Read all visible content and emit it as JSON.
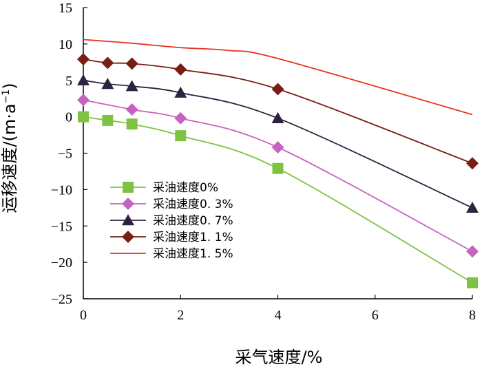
{
  "chart_data": {
    "type": "line",
    "title": "",
    "xlabel": "采气速度/%",
    "ylabel_main": "运移速度/(m·a",
    "ylabel_sup": "−1",
    "ylabel_close": ")",
    "xlim": [
      0,
      8
    ],
    "ylim": [
      -25,
      15
    ],
    "xticks": [
      0,
      2,
      4,
      6,
      8
    ],
    "yticks": [
      15,
      10,
      5,
      0,
      -5,
      -10,
      -15,
      -20,
      -25
    ],
    "ytick_labels": [
      "15",
      "10",
      "5",
      "0",
      "−5",
      "−10",
      "−15",
      "−20",
      "−25"
    ],
    "grid": false,
    "legend_position": "lower-left",
    "series": [
      {
        "name": "采油速度0%",
        "color": "#7fc241",
        "marker": "square",
        "x": [
          0,
          0.5,
          1,
          2,
          4,
          8
        ],
        "values": [
          0.0,
          -0.5,
          -1.0,
          -2.6,
          -7.1,
          -22.8
        ]
      },
      {
        "name": "采油速度0. 3%",
        "color": "#c862c0",
        "marker": "diamond",
        "x": [
          0,
          1,
          2,
          4,
          8
        ],
        "values": [
          2.3,
          1.0,
          -0.2,
          -4.2,
          -18.5
        ]
      },
      {
        "name": "采油速度0. 7%",
        "color": "#2d2240",
        "marker": "triangle",
        "x": [
          0,
          0.5,
          1,
          2,
          4,
          8
        ],
        "values": [
          5.0,
          4.5,
          4.2,
          3.3,
          -0.2,
          -12.5
        ]
      },
      {
        "name": "采油速度1. 1%",
        "color": "#7a1d12",
        "marker": "diamond",
        "x": [
          0,
          0.5,
          1,
          2,
          4,
          8
        ],
        "values": [
          7.9,
          7.4,
          7.3,
          6.5,
          3.8,
          -6.4
        ]
      },
      {
        "name": "采油速度1. 5%",
        "color": "#e8321e",
        "marker": "none",
        "x": [
          0,
          1,
          2,
          3,
          4,
          8
        ],
        "values": [
          10.6,
          10.1,
          9.5,
          9.1,
          8.0,
          0.3
        ]
      }
    ]
  }
}
